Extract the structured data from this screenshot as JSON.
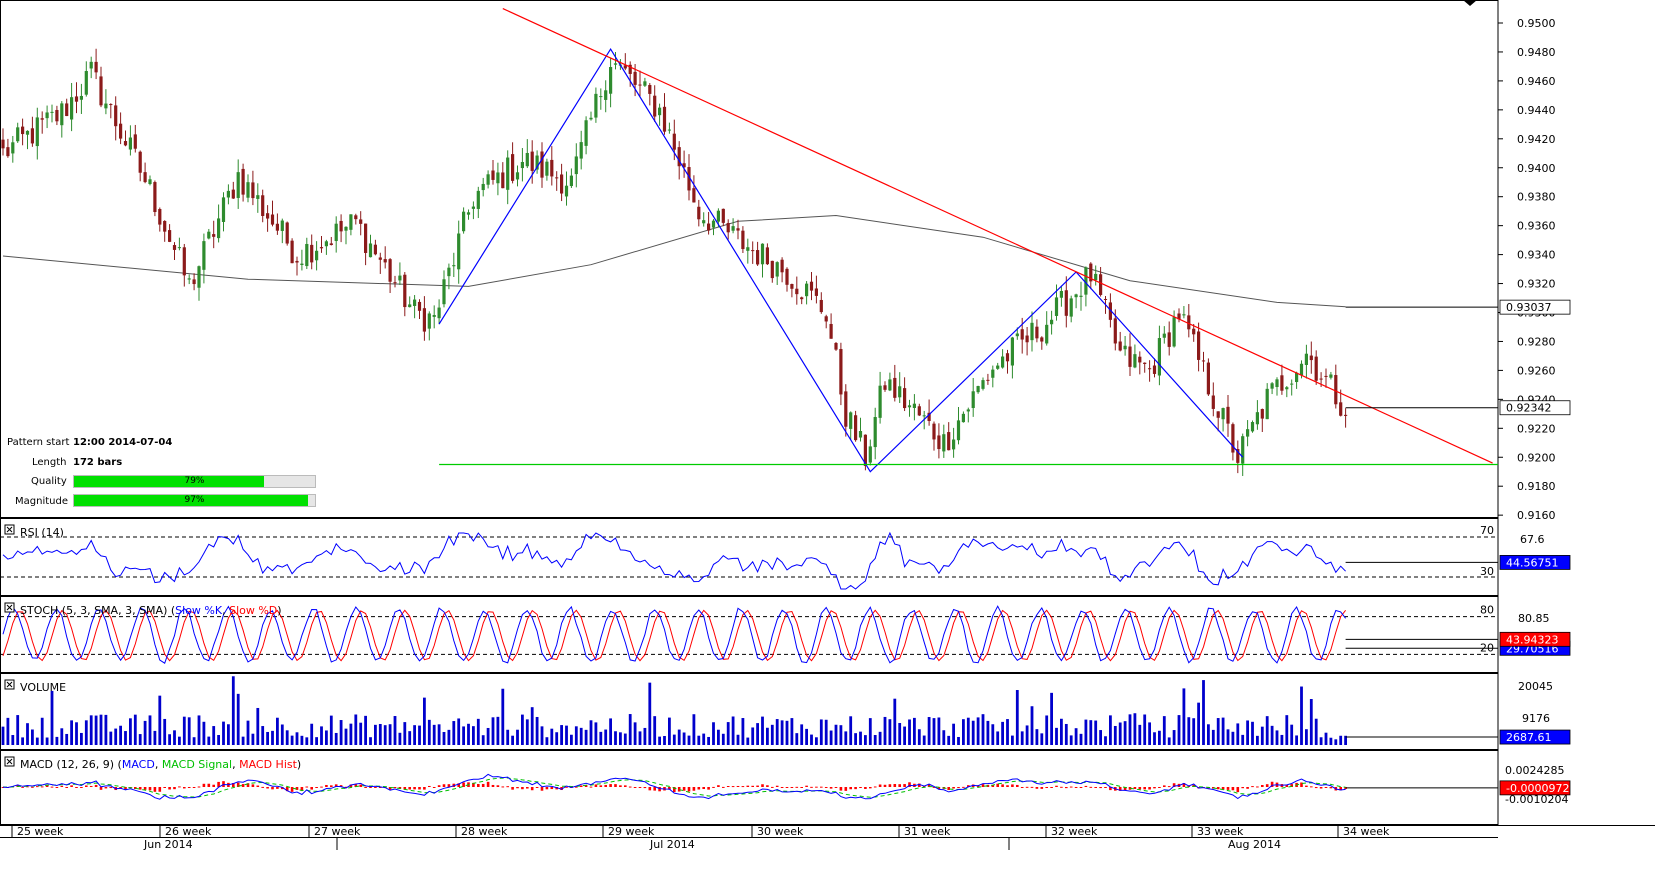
{
  "pattern": {
    "start_label": "Pattern start",
    "start_value": "12:00 2014-07-04",
    "length_label": "Length",
    "length_value": "172 bars",
    "quality_label": "Quality",
    "quality_text": "79%",
    "quality": 0.79,
    "magnitude_label": "Magnitude",
    "magnitude_text": "97%",
    "magnitude": 0.97
  },
  "price_panel": {
    "ticks": [
      "0.9500",
      "0.9480",
      "0.9460",
      "0.9440",
      "0.9420",
      "0.9400",
      "0.9380",
      "0.9360",
      "0.9340",
      "0.9320",
      "0.9300",
      "0.9280",
      "0.9260",
      "0.9240",
      "0.9220",
      "0.9200",
      "0.9180",
      "0.9160"
    ],
    "ma_badge": "0.93037",
    "last_badge": "0.92342"
  },
  "rsi_panel": {
    "title": "RSI (14)",
    "upper_label": "70",
    "mid_label": "67.6",
    "lower_label": "30",
    "value_badge": "44.56751"
  },
  "stoch_panel": {
    "title_prefix": "STOCH (5, 3, SMA, 3, SMA) (",
    "slow_k": "Slow %K",
    "sep": ", ",
    "slow_d": "Slow %D",
    "title_suffix": ")",
    "upper_label": "80",
    "mid_label": "80.85",
    "lower_label": "20",
    "d_badge": "43.94323",
    "k_badge": "29.70516"
  },
  "volume_panel": {
    "title": "VOLUME",
    "tick_high": "20045",
    "tick_mid": "9176",
    "value_badge": "2687.61"
  },
  "macd_panel": {
    "title_prefix": "MACD (12, 26, 9) (",
    "macd": "MACD",
    "sep": ", ",
    "signal": "MACD Signal",
    "hist": "MACD Hist",
    "title_suffix": ")",
    "tick_high": "0.0024285",
    "tick_low": "-0.0010204",
    "value_badge": "-0.0000972"
  },
  "time_axis": {
    "weeks": [
      "25 week",
      "26 week",
      "27 week",
      "28 week",
      "29 week",
      "30 week",
      "31 week",
      "32 week",
      "33 week",
      "34 week"
    ],
    "months": [
      "Jun 2014",
      "Jul 2014",
      "Aug 2014"
    ]
  },
  "colors": {
    "up_candle": "#2e8b2e",
    "down_candle": "#8b1a1a",
    "resistance": "#ff0000",
    "support": "#00cc00",
    "zigzag": "#0000ff",
    "moving_average": "#555555",
    "badge_blue": "#0000ff",
    "badge_red": "#ff0000"
  },
  "chart_data": {
    "type": "candlestick",
    "series_name": "",
    "y_range": [
      0.915,
      0.951
    ],
    "grid": false,
    "anchors": [
      {
        "bar": 0,
        "close": 0.941
      },
      {
        "bar": 12,
        "close": 0.9438
      },
      {
        "bar": 18,
        "close": 0.9465
      },
      {
        "bar": 30,
        "close": 0.9385
      },
      {
        "bar": 38,
        "close": 0.9318
      },
      {
        "bar": 48,
        "close": 0.9395
      },
      {
        "bar": 60,
        "close": 0.934
      },
      {
        "bar": 72,
        "close": 0.9362
      },
      {
        "bar": 84,
        "close": 0.93
      },
      {
        "bar": 88,
        "close": 0.9295
      },
      {
        "bar": 96,
        "close": 0.938
      },
      {
        "bar": 106,
        "close": 0.9405
      },
      {
        "bar": 116,
        "close": 0.939
      },
      {
        "bar": 124,
        "close": 0.9475
      },
      {
        "bar": 134,
        "close": 0.944
      },
      {
        "bar": 142,
        "close": 0.937
      },
      {
        "bar": 150,
        "close": 0.935
      },
      {
        "bar": 160,
        "close": 0.9328
      },
      {
        "bar": 168,
        "close": 0.93
      },
      {
        "bar": 172,
        "close": 0.923
      },
      {
        "bar": 176,
        "close": 0.92
      },
      {
        "bar": 180,
        "close": 0.9252
      },
      {
        "bar": 186,
        "close": 0.9232
      },
      {
        "bar": 192,
        "close": 0.921
      },
      {
        "bar": 202,
        "close": 0.9262
      },
      {
        "bar": 212,
        "close": 0.929
      },
      {
        "bar": 222,
        "close": 0.9326
      },
      {
        "bar": 228,
        "close": 0.927
      },
      {
        "bar": 234,
        "close": 0.926
      },
      {
        "bar": 240,
        "close": 0.93
      },
      {
        "bar": 246,
        "close": 0.925
      },
      {
        "bar": 252,
        "close": 0.92
      },
      {
        "bar": 258,
        "close": 0.924
      },
      {
        "bar": 266,
        "close": 0.9272
      },
      {
        "bar": 274,
        "close": 0.9234
      }
    ],
    "moving_average": [
      {
        "bar": 0,
        "value": 0.9339
      },
      {
        "bar": 50,
        "value": 0.9323
      },
      {
        "bar": 95,
        "value": 0.9318
      },
      {
        "bar": 120,
        "value": 0.9333
      },
      {
        "bar": 150,
        "value": 0.9363
      },
      {
        "bar": 170,
        "value": 0.9367
      },
      {
        "bar": 200,
        "value": 0.9352
      },
      {
        "bar": 230,
        "value": 0.9322
      },
      {
        "bar": 260,
        "value": 0.9307
      },
      {
        "bar": 274,
        "value": 0.9304
      }
    ],
    "resistance_line": [
      {
        "bar": 102,
        "value": 0.951
      },
      {
        "bar": 304,
        "value": 0.9196
      }
    ],
    "support_line": [
      {
        "bar": 89,
        "value": 0.9195
      },
      {
        "bar": 304,
        "value": 0.9195
      }
    ],
    "zigzag": [
      {
        "bar": 89,
        "value": 0.9292
      },
      {
        "bar": 124,
        "value": 0.9482
      },
      {
        "bar": 177,
        "value": 0.919
      },
      {
        "bar": 219,
        "value": 0.9328
      },
      {
        "bar": 253,
        "value": 0.92
      }
    ],
    "rsi": {
      "value": 44.56751,
      "levels": [
        30,
        70
      ]
    },
    "stochastic": {
      "k": 29.70516,
      "d": 43.94323,
      "levels": [
        20,
        80
      ]
    },
    "volume": {
      "last": 2687.61
    },
    "macd": {
      "last": -9.72e-05
    }
  }
}
